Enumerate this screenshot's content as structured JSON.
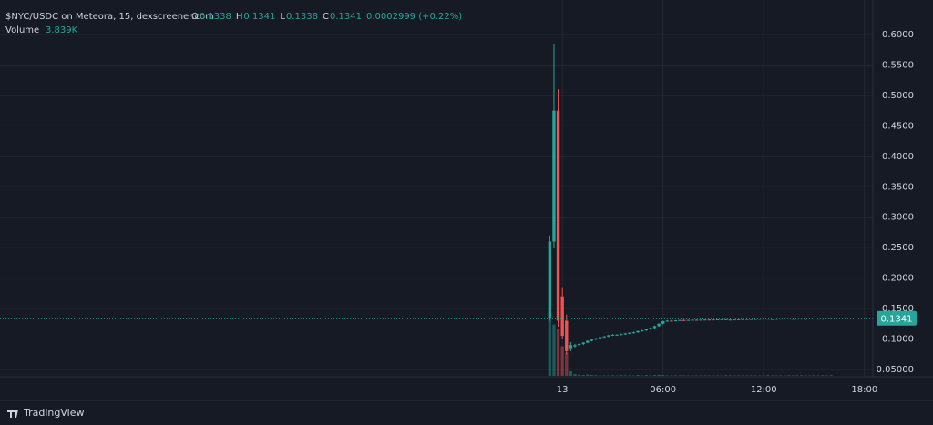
{
  "chart_data": {
    "type": "candlestick",
    "title": "$NYC/USDC on Meteora, 15, dexscreener.com",
    "ohlc_letters": [
      "O",
      "H",
      "L",
      "C"
    ],
    "change": "0.0002999 (+0.22%)",
    "volume_title": "Volume",
    "volume_label": "3.839K",
    "brand": "TradingView",
    "up_color": "#26a69a",
    "down_color": "#ef5350",
    "grid": true,
    "x": [
      -0.75,
      -0.5,
      -0.25,
      0,
      0.25,
      0.5,
      0.75,
      1,
      1.25,
      1.5,
      1.75,
      2,
      2.25,
      2.5,
      2.75,
      3,
      3.25,
      3.5,
      3.75,
      4,
      4.25,
      4.5,
      4.75,
      5,
      5.25,
      5.5,
      5.75,
      6,
      6.25,
      6.5,
      6.75,
      7,
      7.25,
      7.5,
      7.75,
      8,
      8.25,
      8.5,
      8.75,
      9,
      9.25,
      9.5,
      9.75,
      10,
      10.25,
      10.5,
      10.75,
      11,
      11.25,
      11.5,
      11.75,
      12,
      12.25,
      12.5,
      12.75,
      13,
      13.25,
      13.5,
      13.75,
      14,
      14.25,
      14.5,
      14.75,
      15,
      15.25,
      15.5,
      15.75,
      16
    ],
    "open": [
      0.135,
      0.26,
      0.475,
      0.17,
      0.13,
      0.085,
      0.088,
      0.09,
      0.092,
      0.094,
      0.097,
      0.099,
      0.101,
      0.103,
      0.104,
      0.106,
      0.107,
      0.107,
      0.108,
      0.109,
      0.11,
      0.111,
      0.113,
      0.114,
      0.116,
      0.118,
      0.121,
      0.125,
      0.129,
      0.13,
      0.1295,
      0.1305,
      0.131,
      0.1308,
      0.1312,
      0.1315,
      0.1312,
      0.1316,
      0.1318,
      0.1316,
      0.132,
      0.1322,
      0.1324,
      0.1312,
      0.1318,
      0.132,
      0.1324,
      0.1326,
      0.1328,
      0.1326,
      0.133,
      0.1332,
      0.1334,
      0.1322,
      0.1328,
      0.1332,
      0.1334,
      0.1336,
      0.1328,
      0.1332,
      0.1335,
      0.1325,
      0.1333,
      0.1336,
      0.1328,
      0.1335,
      0.1327,
      0.1338
    ],
    "high": [
      0.27,
      0.585,
      0.51,
      0.185,
      0.14,
      0.095,
      0.092,
      0.094,
      0.095,
      0.098,
      0.1,
      0.102,
      0.103,
      0.105,
      0.107,
      0.108,
      0.108,
      0.109,
      0.11,
      0.111,
      0.112,
      0.114,
      0.115,
      0.117,
      0.119,
      0.122,
      0.126,
      0.13,
      0.131,
      0.131,
      0.131,
      0.1315,
      0.132,
      0.1315,
      0.132,
      0.132,
      0.1318,
      0.132,
      0.1322,
      0.1322,
      0.1325,
      0.1326,
      0.1326,
      0.132,
      0.1322,
      0.1325,
      0.1328,
      0.133,
      0.133,
      0.1332,
      0.1334,
      0.1335,
      0.1336,
      0.133,
      0.1334,
      0.1336,
      0.1338,
      0.1338,
      0.1334,
      0.1336,
      0.1338,
      0.1334,
      0.1337,
      0.1338,
      0.1336,
      0.1338,
      0.1339,
      0.1341
    ],
    "low": [
      0.13,
      0.25,
      0.12,
      0.1,
      0.075,
      0.08,
      0.086,
      0.089,
      0.09,
      0.093,
      0.096,
      0.098,
      0.1,
      0.102,
      0.103,
      0.105,
      0.106,
      0.106,
      0.107,
      0.108,
      0.109,
      0.11,
      0.112,
      0.113,
      0.115,
      0.117,
      0.12,
      0.124,
      0.128,
      0.129,
      0.129,
      0.13,
      0.1305,
      0.13,
      0.131,
      0.131,
      0.131,
      0.1312,
      0.1314,
      0.131,
      0.1315,
      0.1318,
      0.131,
      0.131,
      0.1315,
      0.1318,
      0.132,
      0.1322,
      0.1324,
      0.1322,
      0.1326,
      0.1328,
      0.132,
      0.132,
      0.1325,
      0.1328,
      0.133,
      0.1325,
      0.1325,
      0.1328,
      0.132,
      0.1322,
      0.133,
      0.1326,
      0.1326,
      0.1325,
      0.1326,
      0.1338
    ],
    "close": [
      0.26,
      0.475,
      0.13,
      0.105,
      0.08,
      0.09,
      0.09,
      0.092,
      0.094,
      0.097,
      0.099,
      0.101,
      0.103,
      0.104,
      0.106,
      0.107,
      0.107,
      0.108,
      0.109,
      0.11,
      0.111,
      0.113,
      0.114,
      0.116,
      0.118,
      0.121,
      0.125,
      0.129,
      0.13,
      0.1295,
      0.1305,
      0.131,
      0.1308,
      0.1312,
      0.1315,
      0.1312,
      0.1316,
      0.1318,
      0.1316,
      0.132,
      0.1322,
      0.1324,
      0.1312,
      0.1318,
      0.132,
      0.1324,
      0.1326,
      0.1328,
      0.1326,
      0.133,
      0.1332,
      0.1334,
      0.1322,
      0.1328,
      0.1332,
      0.1334,
      0.1336,
      0.1328,
      0.1332,
      0.1335,
      0.1325,
      0.1333,
      0.1336,
      0.1328,
      0.1335,
      0.1327,
      0.1338,
      0.1341
    ],
    "volume": [
      400000,
      330000,
      300000,
      190000,
      150000,
      30000,
      12000,
      8000,
      6000,
      9000,
      5000,
      4000,
      3000,
      3000,
      3000,
      4000,
      3000,
      5000,
      3000,
      3000,
      3000,
      6000,
      3000,
      5000,
      3000,
      5000,
      7000,
      5000,
      3000,
      3000,
      3000,
      3000,
      3000,
      3000,
      3000,
      3000,
      3000,
      3000,
      3000,
      3000,
      3000,
      3000,
      4000,
      3000,
      3000,
      3000,
      3000,
      3000,
      3000,
      3000,
      3000,
      3000,
      4000,
      3000,
      3000,
      3000,
      3000,
      4000,
      3000,
      3000,
      4000,
      3000,
      3000,
      4000,
      3000,
      4000,
      3000,
      3839
    ],
    "xlim": [
      -33.5,
      18.5
    ],
    "xticks": [
      {
        "value": 0,
        "label": "13"
      },
      {
        "value": 6,
        "label": "06:00"
      },
      {
        "value": 12,
        "label": "12:00"
      },
      {
        "value": 18,
        "label": "18:00"
      }
    ],
    "ylim": [
      0.038,
      0.6568
    ],
    "yticks": [
      {
        "value": 0.6,
        "label": "0.6000"
      },
      {
        "value": 0.55,
        "label": "0.5500"
      },
      {
        "value": 0.5,
        "label": "0.5000"
      },
      {
        "value": 0.45,
        "label": "0.4500"
      },
      {
        "value": 0.4,
        "label": "0.4000"
      },
      {
        "value": 0.35,
        "label": "0.3500"
      },
      {
        "value": 0.3,
        "label": "0.3000"
      },
      {
        "value": 0.25,
        "label": "0.2500"
      },
      {
        "value": 0.2,
        "label": "0.2000"
      },
      {
        "value": 0.15,
        "label": "0.1500"
      },
      {
        "value": 0.1,
        "label": "0.1000"
      },
      {
        "value": 0.05,
        "label": "0.05000"
      }
    ],
    "vlim": [
      0,
      480000
    ]
  }
}
